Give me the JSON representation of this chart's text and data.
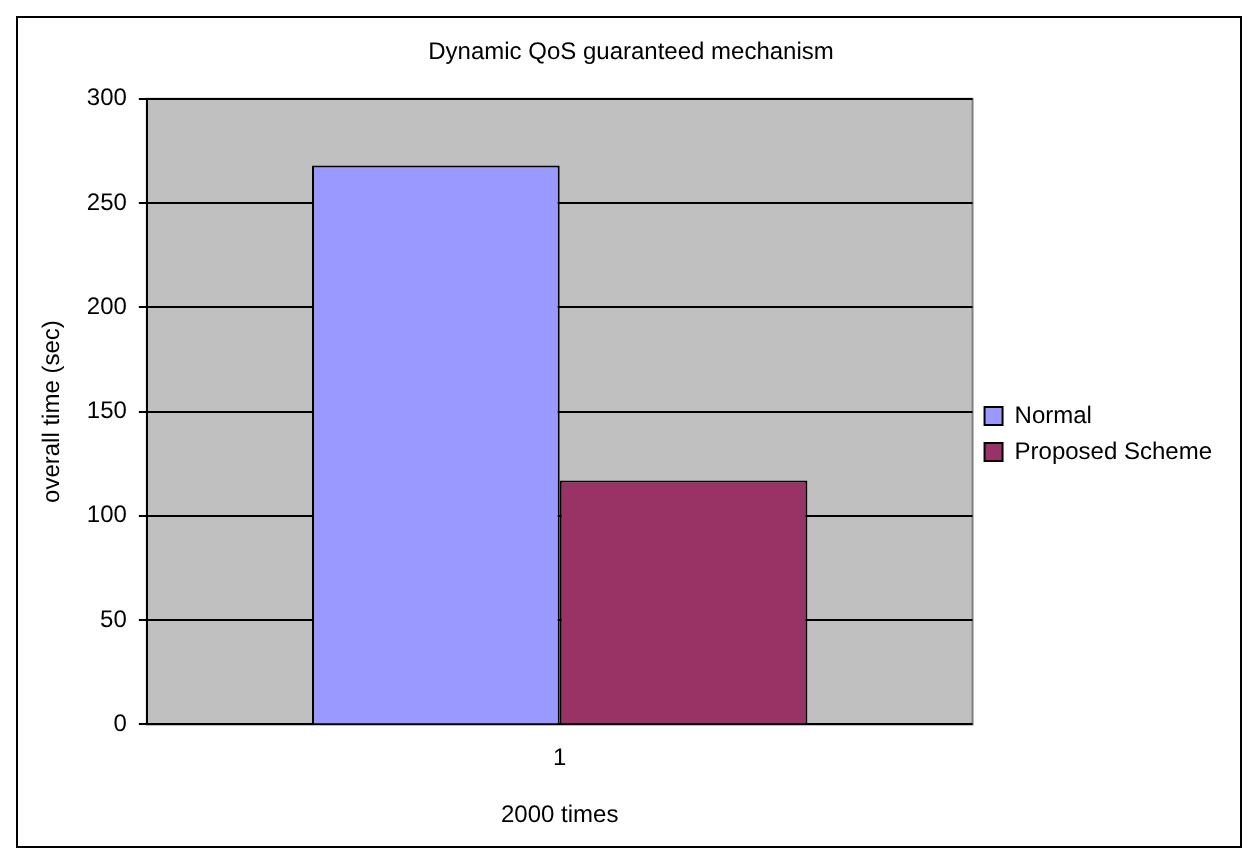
{
  "chart_data": {
    "type": "bar",
    "title": "Dynamic QoS guaranteed mechanism",
    "xlabel": "2000 times",
    "ylabel": "overall time (sec)",
    "categories": [
      "1"
    ],
    "series": [
      {
        "name": "Normal",
        "color": "#9999ff",
        "values": [
          268
        ]
      },
      {
        "name": "Proposed Scheme",
        "color": "#993366",
        "values": [
          117
        ]
      }
    ],
    "ylim": [
      0,
      300
    ],
    "yticks": [
      0,
      50,
      100,
      150,
      200,
      250,
      300
    ],
    "grid": "y",
    "legend": "right"
  }
}
